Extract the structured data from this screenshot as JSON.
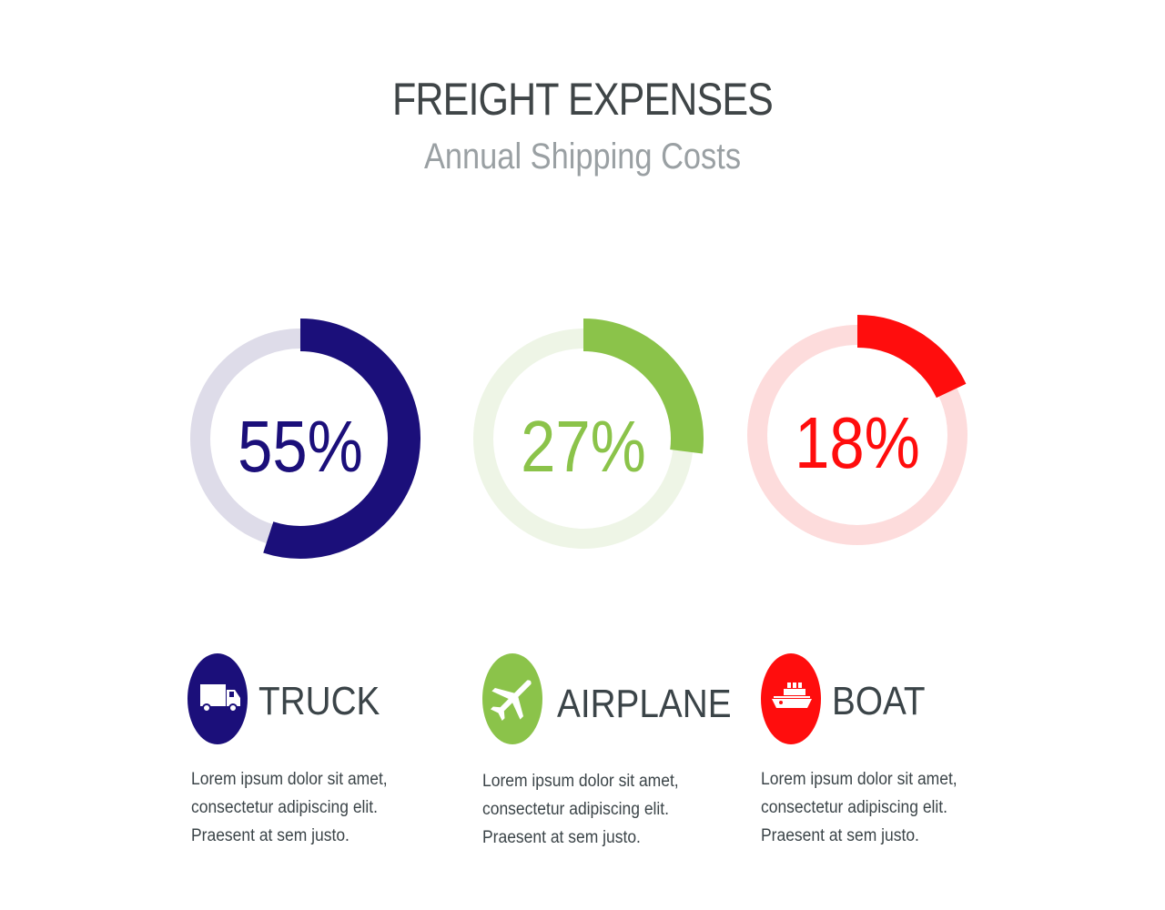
{
  "header": {
    "title": "FREIGHT EXPENSES",
    "subtitle": "Annual Shipping Costs"
  },
  "chart_data": {
    "type": "pie",
    "title": "FREIGHT EXPENSES",
    "subtitle": "Annual Shipping Costs",
    "categories": [
      "TRUCK",
      "AIRPLANE",
      "BOAT"
    ],
    "values": [
      55,
      27,
      18
    ],
    "series": [
      {
        "name": "TRUCK",
        "value": 55,
        "label": "55%",
        "color": "#1b0f7a",
        "track_color": "#dedce9"
      },
      {
        "name": "AIRPLANE",
        "value": 27,
        "label": "27%",
        "color": "#8bc34a",
        "track_color": "#eef5e6"
      },
      {
        "name": "BOAT",
        "value": 18,
        "label": "18%",
        "color": "#ff0d0d",
        "track_color": "#fddcdc"
      }
    ]
  },
  "modes": [
    {
      "label": "TRUCK",
      "icon": "truck-icon",
      "color": "#1b0f7a",
      "description": [
        "Lorem ipsum dolor sit amet,",
        "consectetur adipiscing elit.",
        "Praesent at sem justo."
      ]
    },
    {
      "label": "AIRPLANE",
      "icon": "airplane-icon",
      "color": "#8bc34a",
      "description": [
        "Lorem ipsum dolor sit amet,",
        "consectetur adipiscing elit.",
        "Praesent at sem justo."
      ]
    },
    {
      "label": "BOAT",
      "icon": "boat-icon",
      "color": "#ff0d0d",
      "description": [
        "Lorem ipsum dolor sit amet,",
        "consectetur adipiscing elit.",
        "Praesent at sem justo."
      ]
    }
  ]
}
